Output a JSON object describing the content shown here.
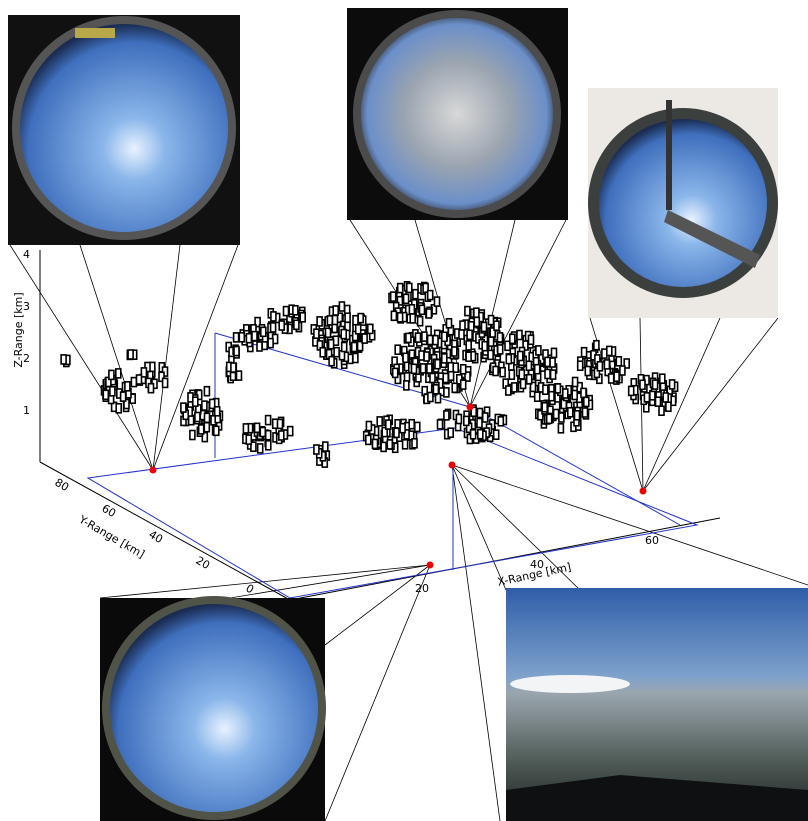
{
  "axes": {
    "z": {
      "label": "Z-Range [km]",
      "ticks": [
        "1",
        "2",
        "3",
        "4"
      ]
    },
    "y": {
      "label": "Y-Range [km]",
      "ticks": [
        "80",
        "60",
        "40",
        "20",
        "0"
      ]
    },
    "x": {
      "label": "X-Range [km]",
      "ticks": [
        "20",
        "40",
        "60"
      ]
    }
  }
}
